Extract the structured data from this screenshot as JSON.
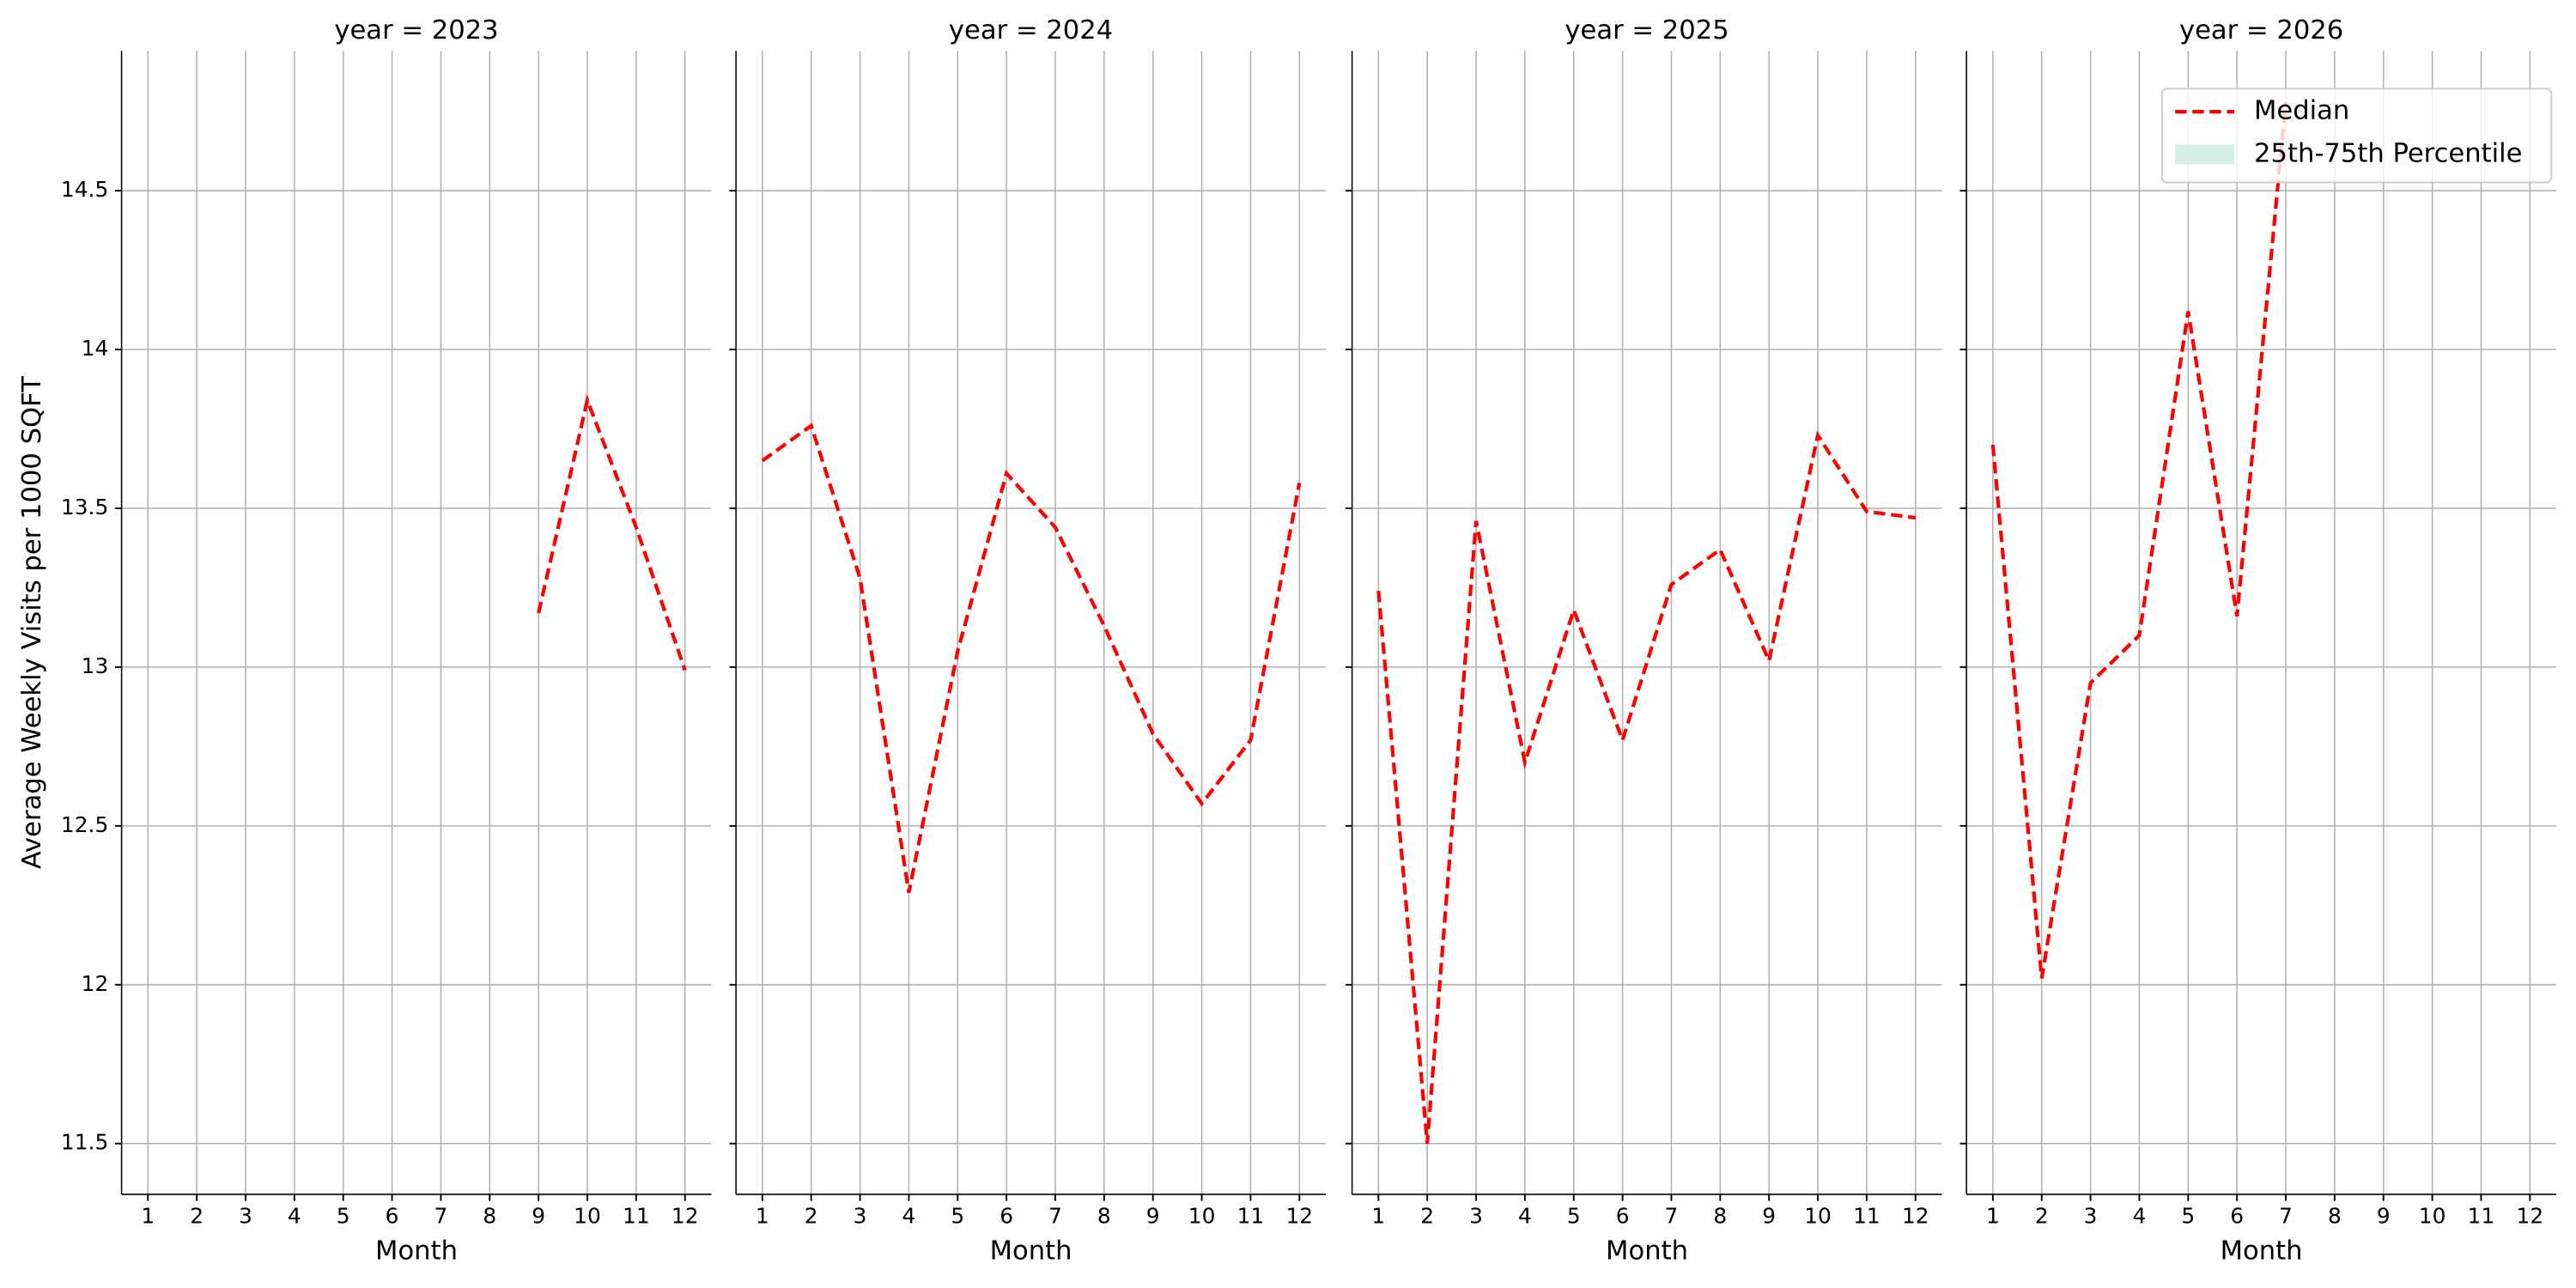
{
  "chart_data": [
    {
      "type": "line",
      "title": "year = 2023",
      "xlabel": "Month",
      "ylabel": "Average Weekly Visits per 1000 SQFT",
      "x": [
        1,
        2,
        3,
        4,
        5,
        6,
        7,
        8,
        9,
        10,
        11,
        12
      ],
      "series": [
        {
          "name": "Median",
          "color": "#ff0000",
          "values": [
            null,
            null,
            null,
            null,
            null,
            null,
            null,
            null,
            13.17,
            13.84,
            13.44,
            12.99
          ]
        }
      ],
      "xlim": [
        0.46,
        12.54
      ],
      "xticks": [
        1,
        2,
        3,
        4,
        5,
        6,
        7,
        8,
        9,
        10,
        11,
        12
      ],
      "ylim": [
        11.34,
        14.94
      ],
      "yticks": [
        11.5,
        12.0,
        12.5,
        13.0,
        13.5,
        14.0,
        14.5
      ],
      "grid": true
    },
    {
      "type": "line",
      "title": "year = 2024",
      "xlabel": "Month",
      "x": [
        1,
        2,
        3,
        4,
        5,
        6,
        7,
        8,
        9,
        10,
        11,
        12
      ],
      "series": [
        {
          "name": "Median",
          "color": "#ff0000",
          "values": [
            13.65,
            13.76,
            13.28,
            12.29,
            13.05,
            13.61,
            13.44,
            13.13,
            12.79,
            12.57,
            12.77,
            13.58
          ]
        }
      ],
      "xlim": [
        0.46,
        12.54
      ],
      "xticks": [
        1,
        2,
        3,
        4,
        5,
        6,
        7,
        8,
        9,
        10,
        11,
        12
      ],
      "ylim": [
        11.34,
        14.94
      ],
      "yticks": [
        11.5,
        12.0,
        12.5,
        13.0,
        13.5,
        14.0,
        14.5
      ],
      "grid": true
    },
    {
      "type": "line",
      "title": "year = 2025",
      "xlabel": "Month",
      "x": [
        1,
        2,
        3,
        4,
        5,
        6,
        7,
        8,
        9,
        10,
        11,
        12
      ],
      "series": [
        {
          "name": "Median",
          "color": "#ff0000",
          "values": [
            13.24,
            11.5,
            13.46,
            12.7,
            13.18,
            12.77,
            13.26,
            13.37,
            13.02,
            13.73,
            13.49,
            13.47
          ]
        }
      ],
      "xlim": [
        0.46,
        12.54
      ],
      "xticks": [
        1,
        2,
        3,
        4,
        5,
        6,
        7,
        8,
        9,
        10,
        11,
        12
      ],
      "ylim": [
        11.34,
        14.94
      ],
      "yticks": [
        11.5,
        12.0,
        12.5,
        13.0,
        13.5,
        14.0,
        14.5
      ],
      "grid": true
    },
    {
      "type": "line",
      "title": "year = 2026",
      "xlabel": "Month",
      "x": [
        1,
        2,
        3,
        4,
        5,
        6,
        7,
        8,
        9,
        10,
        11,
        12
      ],
      "series": [
        {
          "name": "Median",
          "color": "#ff0000",
          "values": [
            13.7,
            12.02,
            12.95,
            13.1,
            14.12,
            13.16,
            14.78,
            null,
            null,
            null,
            null,
            null
          ]
        }
      ],
      "xlim": [
        0.46,
        12.54
      ],
      "xticks": [
        1,
        2,
        3,
        4,
        5,
        6,
        7,
        8,
        9,
        10,
        11,
        12
      ],
      "ylim": [
        11.34,
        14.94
      ],
      "yticks": [
        11.5,
        12.0,
        12.5,
        13.0,
        13.5,
        14.0,
        14.5
      ],
      "grid": true,
      "legend": {
        "loc": "upper right",
        "entries": [
          {
            "name": "Median",
            "color": "#ff0000"
          },
          {
            "name": "25th-75th Percentile",
            "color": "#d4eee6"
          }
        ]
      }
    }
  ]
}
